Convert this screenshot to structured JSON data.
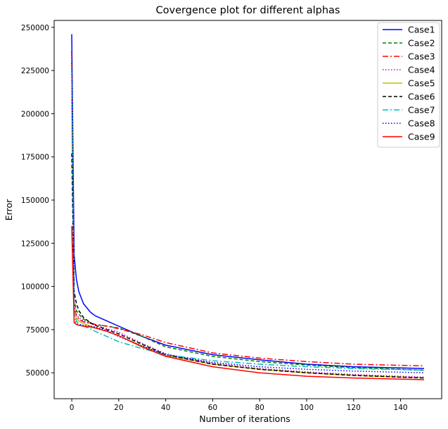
{
  "chart_data": {
    "type": "line",
    "title": "Covergence plot for different alphas",
    "xlabel": "Number of iterations",
    "ylabel": "Error",
    "xlim": [
      -7.5,
      157.5
    ],
    "ylim": [
      35000,
      254000
    ],
    "xticks": [
      0,
      20,
      40,
      60,
      80,
      100,
      120,
      140
    ],
    "yticks": [
      50000,
      75000,
      100000,
      125000,
      150000,
      175000,
      200000,
      225000,
      250000
    ],
    "grid": false,
    "legend_position": "top-right",
    "x": [
      0,
      1,
      2,
      3,
      5,
      8,
      10,
      15,
      20,
      30,
      40,
      60,
      80,
      100,
      120,
      150
    ],
    "series": [
      {
        "name": "Case1",
        "color": "#0000ff",
        "dash": "solid",
        "values": [
          246000,
          118000,
          104000,
          97000,
          90000,
          85000,
          83000,
          80000,
          77000,
          71000,
          66000,
          60500,
          57500,
          55000,
          53500,
          52500
        ]
      },
      {
        "name": "Case2",
        "color": "#008000",
        "dash": "dashed",
        "values": [
          230000,
          92000,
          86000,
          84000,
          81000,
          79000,
          78000,
          77000,
          76000,
          71000,
          65000,
          59500,
          56500,
          54500,
          53000,
          51500
        ]
      },
      {
        "name": "Case3",
        "color": "#ff0000",
        "dash": "dashdot",
        "values": [
          236000,
          88000,
          83000,
          81000,
          79500,
          78500,
          78000,
          77000,
          75500,
          72000,
          67500,
          61500,
          58500,
          56500,
          55000,
          54000
        ]
      },
      {
        "name": "Case4",
        "color": "#bf00bf",
        "dash": "dotted",
        "values": [
          208000,
          90000,
          84000,
          82000,
          80000,
          78500,
          77500,
          75500,
          73500,
          67000,
          61000,
          55500,
          52500,
          50500,
          49000,
          47500
        ]
      },
      {
        "name": "Case5",
        "color": "#bfbf00",
        "dash": "solid",
        "values": [
          204000,
          86000,
          81500,
          80000,
          78500,
          77000,
          76000,
          74000,
          71500,
          65500,
          60000,
          55000,
          52000,
          50000,
          48500,
          47000
        ]
      },
      {
        "name": "Case6",
        "color": "#000000",
        "dash": "dashed",
        "values": [
          177000,
          97000,
          90000,
          86000,
          82000,
          79000,
          77500,
          75000,
          72500,
          66500,
          60500,
          55000,
          52000,
          50000,
          48500,
          47000
        ]
      },
      {
        "name": "Case7",
        "color": "#00bfbf",
        "dash": "dashdot",
        "values": [
          225000,
          84000,
          80000,
          78500,
          77000,
          75500,
          74000,
          71000,
          68000,
          64000,
          60500,
          57000,
          55000,
          53500,
          52500,
          51500
        ]
      },
      {
        "name": "Case8",
        "color": "#0000ff",
        "dash": "dotted",
        "values": [
          236000,
          81000,
          78500,
          78000,
          77500,
          77000,
          76500,
          74500,
          71000,
          65500,
          60500,
          56000,
          53500,
          52000,
          51000,
          50000
        ]
      },
      {
        "name": "Case9",
        "color": "#ff0000",
        "dash": "solid",
        "values": [
          135000,
          79000,
          78000,
          77500,
          77000,
          76500,
          76000,
          74000,
          71500,
          65000,
          59500,
          53500,
          50000,
          48000,
          47000,
          46000
        ]
      }
    ]
  }
}
